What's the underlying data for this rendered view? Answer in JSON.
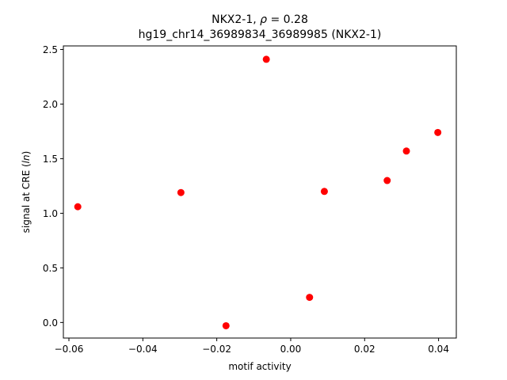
{
  "chart_data": {
    "type": "scatter",
    "title_line1_prefix": "NKX2-1, ",
    "title_line1_rho": "ρ",
    "title_line1_suffix": " = 0.28",
    "title_line2": "hg19_chr14_36989834_36989985 (NKX2-1)",
    "xlabel": "motif activity",
    "ylabel_prefix": "signal at CRE (",
    "ylabel_italic": "ln",
    "ylabel_suffix": ")",
    "xlim": [
      -0.0615,
      0.0448
    ],
    "ylim": [
      -0.1425,
      2.5325
    ],
    "grid": false,
    "marker_color": "#ff0000",
    "x_ticks": [
      {
        "value": -0.06,
        "label": "−0.06"
      },
      {
        "value": -0.04,
        "label": "−0.04"
      },
      {
        "value": -0.02,
        "label": "−0.02"
      },
      {
        "value": 0.0,
        "label": "0.00"
      },
      {
        "value": 0.02,
        "label": "0.02"
      },
      {
        "value": 0.04,
        "label": "0.04"
      }
    ],
    "y_ticks": [
      {
        "value": 0.0,
        "label": "0.0"
      },
      {
        "value": 0.5,
        "label": "0.5"
      },
      {
        "value": 1.0,
        "label": "1.0"
      },
      {
        "value": 1.5,
        "label": "1.5"
      },
      {
        "value": 2.0,
        "label": "2.0"
      },
      {
        "value": 2.5,
        "label": "2.5"
      }
    ],
    "points": [
      {
        "x": -0.0576,
        "y": 1.06
      },
      {
        "x": -0.0297,
        "y": 1.19
      },
      {
        "x": -0.0175,
        "y": -0.03
      },
      {
        "x": -0.0066,
        "y": 2.41
      },
      {
        "x": 0.0051,
        "y": 0.23
      },
      {
        "x": 0.0091,
        "y": 1.2
      },
      {
        "x": 0.0261,
        "y": 1.3
      },
      {
        "x": 0.0313,
        "y": 1.57
      },
      {
        "x": 0.0398,
        "y": 1.74
      }
    ]
  }
}
